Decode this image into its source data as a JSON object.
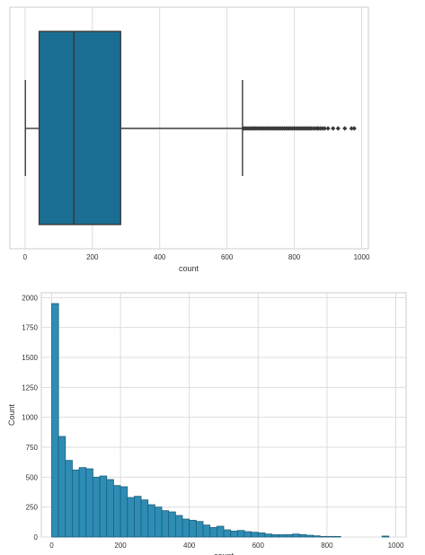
{
  "chart_data": [
    {
      "type": "box",
      "xlabel": "count",
      "ylabel": "",
      "xlim": [
        -45,
        1020
      ],
      "xticks": [
        0,
        200,
        400,
        600,
        800,
        1000
      ],
      "grid": true,
      "box_color": "#1a6e93",
      "stats": {
        "whisker_low": 1,
        "q1": 42,
        "median": 145,
        "q3": 284,
        "whisker_high": 646
      },
      "outliers": [
        650,
        655,
        660,
        665,
        670,
        675,
        680,
        685,
        690,
        695,
        700,
        705,
        710,
        715,
        720,
        725,
        730,
        735,
        740,
        745,
        750,
        755,
        760,
        765,
        770,
        775,
        780,
        785,
        790,
        795,
        800,
        805,
        810,
        815,
        820,
        825,
        830,
        835,
        840,
        845,
        850,
        856,
        862,
        868,
        872,
        878,
        884,
        890,
        900,
        915,
        930,
        950,
        970,
        978
      ]
    },
    {
      "type": "histogram",
      "xlabel": "count",
      "ylabel": "Count",
      "xlim": [
        -30,
        1030
      ],
      "ylim": [
        0,
        2040
      ],
      "xticks": [
        0,
        200,
        400,
        600,
        800,
        1000
      ],
      "yticks": [
        0,
        250,
        500,
        750,
        1000,
        1250,
        1500,
        1750,
        2000
      ],
      "grid": true,
      "bar_color": "#2e8db5",
      "bin_width": 20,
      "bin_start": 0,
      "values": [
        1950,
        840,
        640,
        560,
        580,
        570,
        500,
        510,
        480,
        430,
        420,
        330,
        340,
        310,
        270,
        250,
        220,
        210,
        180,
        150,
        140,
        130,
        100,
        80,
        90,
        60,
        50,
        55,
        45,
        40,
        35,
        25,
        20,
        20,
        20,
        25,
        20,
        15,
        10,
        5,
        5,
        5,
        0,
        0,
        0,
        0,
        0,
        0,
        8
      ]
    }
  ]
}
